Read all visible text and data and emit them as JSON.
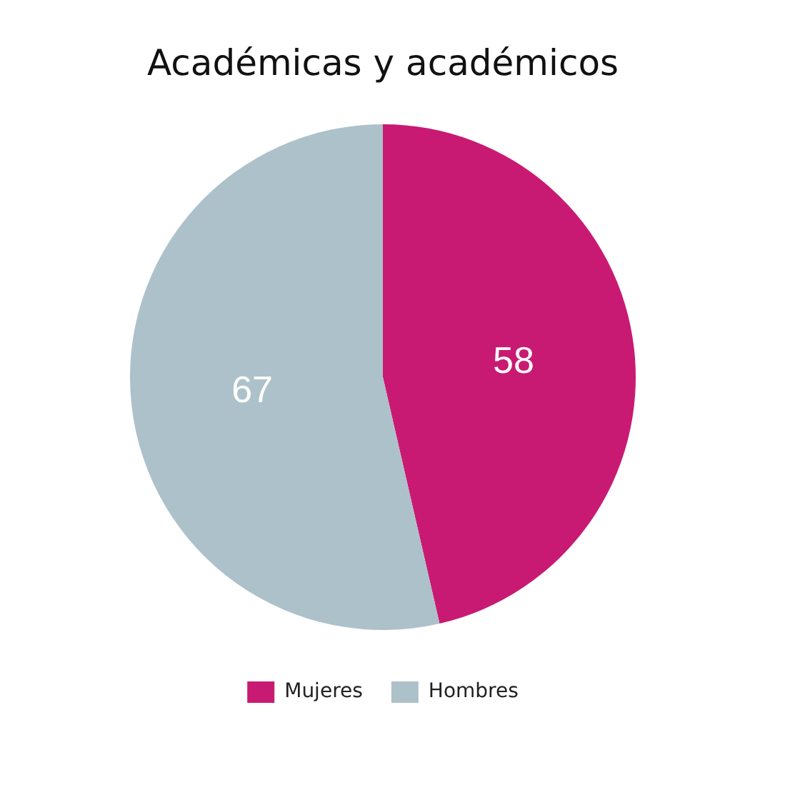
{
  "chart_data": {
    "type": "pie",
    "title": "Académicas y académicos",
    "categories": [
      "Mujeres",
      "Hombres"
    ],
    "values": [
      58,
      67
    ],
    "colors": [
      "#c91a73",
      "#adc1ca"
    ],
    "data_labels": true,
    "legend": "bottom"
  }
}
